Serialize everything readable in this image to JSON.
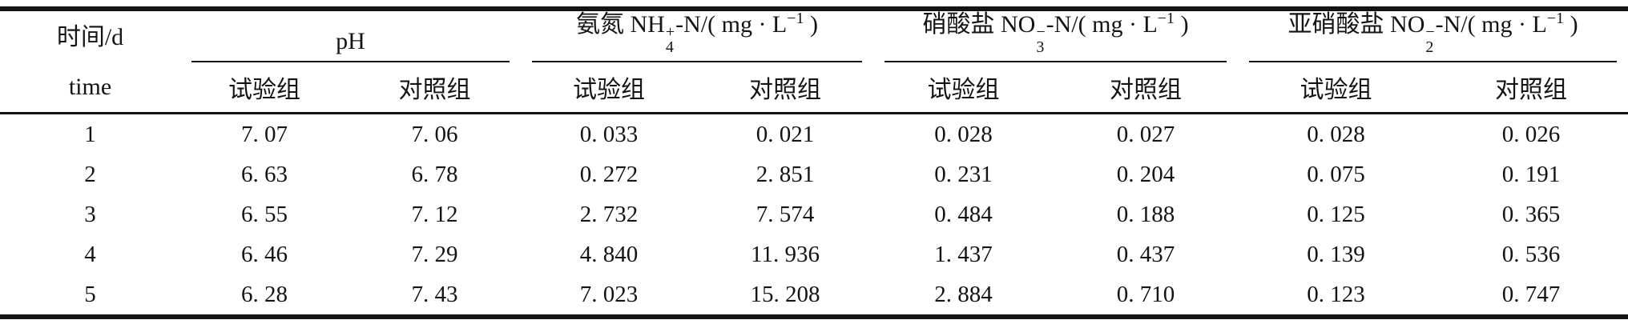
{
  "labels": {
    "stub_line1": "时间/d",
    "stub_line2": "time",
    "test_group": "试验组",
    "control_group": "对照组"
  },
  "groups": {
    "ph": {
      "title": "pH"
    },
    "ammonia": {
      "pre": "氨氮 NH",
      "ion_sup": "+",
      "ion_sub": "4",
      "mid": "-N/( mg · L",
      "exp": "−1",
      "end": " )"
    },
    "nitrate": {
      "pre": "硝酸盐 NO",
      "ion_sup": "−",
      "ion_sub": "3",
      "mid": "-N/( mg · L",
      "exp": "−1",
      "end": " )"
    },
    "nitrite": {
      "pre": "亚硝酸盐 NO",
      "ion_sup": "−",
      "ion_sub": "2",
      "mid": "-N/( mg · L",
      "exp": "−1",
      "end": " )"
    }
  },
  "rows": [
    [
      "1",
      "7. 07",
      "7. 06",
      "0. 033",
      "0. 021",
      "0. 028",
      "0. 027",
      "0. 028",
      "0. 026"
    ],
    [
      "2",
      "6. 63",
      "6. 78",
      "0. 272",
      "2. 851",
      "0. 231",
      "0. 204",
      "0. 075",
      "0. 191"
    ],
    [
      "3",
      "6. 55",
      "7. 12",
      "2. 732",
      "7. 574",
      "0. 484",
      "0. 188",
      "0. 125",
      "0. 365"
    ],
    [
      "4",
      "6. 46",
      "7. 29",
      "4. 840",
      "11. 936",
      "1. 437",
      "0. 437",
      "0. 139",
      "0. 536"
    ],
    [
      "5",
      "6. 28",
      "7. 43",
      "7. 023",
      "15. 208",
      "2. 884",
      "0. 710",
      "0. 123",
      "0. 747"
    ]
  ]
}
